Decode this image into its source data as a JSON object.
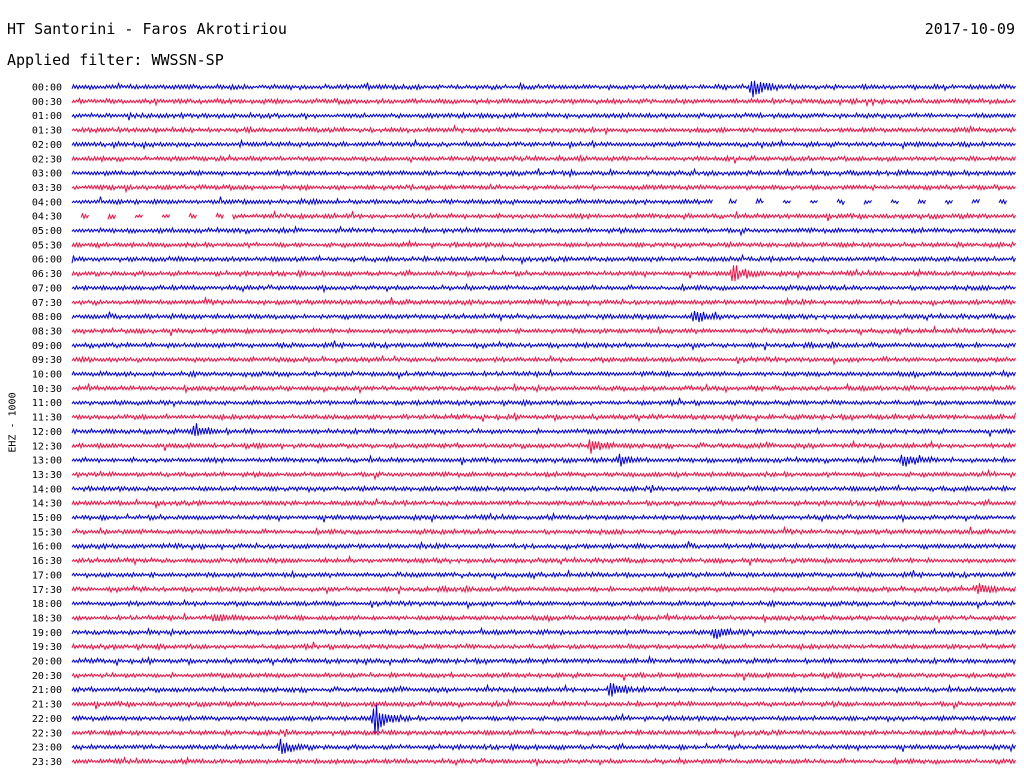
{
  "header": {
    "station": "HT Santorini - Faros Akrotiriou",
    "date": "2017-10-09",
    "filter": "Applied filter: WWSSN-SP"
  },
  "chart_data": {
    "type": "line",
    "ylabel": "EHZ - 1000",
    "tick_labels": [
      "00:00",
      "00:30",
      "01:00",
      "01:30",
      "02:00",
      "02:30",
      "03:00",
      "03:30",
      "04:00",
      "04:30",
      "05:00",
      "05:30",
      "06:00",
      "06:30",
      "07:00",
      "07:30",
      "08:00",
      "08:30",
      "09:00",
      "09:30",
      "10:00",
      "10:30",
      "11:00",
      "11:30",
      "12:00",
      "12:30",
      "13:00",
      "13:30",
      "14:00",
      "14:30",
      "15:00",
      "15:30",
      "16:00",
      "16:30",
      "17:00",
      "17:30",
      "18:00",
      "18:30",
      "19:00",
      "19:30",
      "20:00",
      "20:30",
      "21:00",
      "21:30",
      "22:00",
      "22:30",
      "23:00",
      "23:30"
    ],
    "row_minutes": 30,
    "colors": [
      "#0000dd",
      "#ee1144"
    ],
    "events": [
      {
        "row": 0,
        "at": 0.72,
        "amp": 10
      },
      {
        "row": 13,
        "at": 0.7,
        "amp": 9
      },
      {
        "row": 16,
        "at": 0.66,
        "amp": 6
      },
      {
        "row": 24,
        "at": 0.13,
        "amp": 7
      },
      {
        "row": 25,
        "at": 0.55,
        "amp": 7
      },
      {
        "row": 26,
        "at": 0.88,
        "amp": 7
      },
      {
        "row": 26,
        "at": 0.58,
        "amp": 5
      },
      {
        "row": 38,
        "at": 0.68,
        "amp": 6
      },
      {
        "row": 42,
        "at": 0.57,
        "amp": 9
      },
      {
        "row": 44,
        "at": 0.32,
        "amp": 16
      },
      {
        "row": 46,
        "at": 0.22,
        "amp": 7
      },
      {
        "row": 37,
        "at": 0.15,
        "amp": 5
      },
      {
        "row": 35,
        "at": 0.96,
        "amp": 5
      }
    ],
    "gaps": [
      {
        "row": 8,
        "from": 0.68,
        "to": 1.0
      },
      {
        "row": 9,
        "from": 0.0,
        "to": 0.17
      }
    ]
  }
}
